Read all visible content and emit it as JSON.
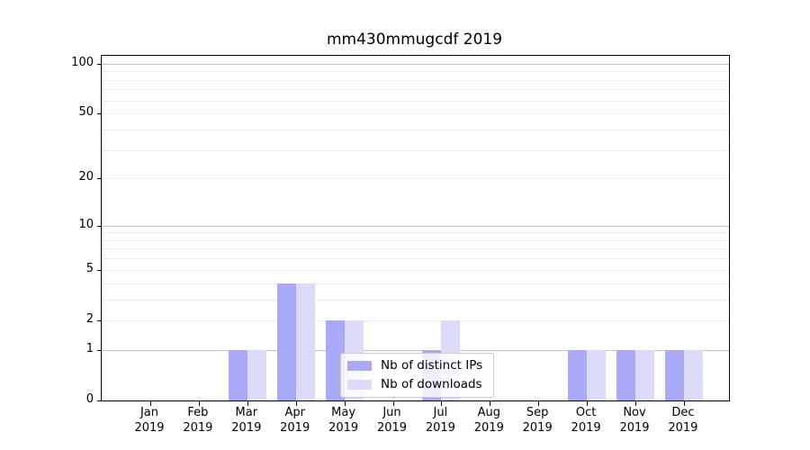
{
  "chart_data": {
    "type": "bar",
    "title": "mm430mmugcdf 2019",
    "categories": [
      "Jan",
      "Feb",
      "Mar",
      "Apr",
      "May",
      "Jun",
      "Jul",
      "Aug",
      "Sep",
      "Oct",
      "Nov",
      "Dec"
    ],
    "year": "2019",
    "series": [
      {
        "name": "Nb of distinct IPs",
        "color": "#a9a9f7",
        "values": [
          0,
          0,
          1,
          4,
          2,
          0,
          1,
          0,
          0,
          1,
          1,
          1
        ]
      },
      {
        "name": "Nb of downloads",
        "color": "#dcdcfa",
        "values": [
          0,
          0,
          1,
          4,
          2,
          0,
          2,
          0,
          0,
          1,
          1,
          1
        ]
      }
    ],
    "yscale": "log1p",
    "ylim": [
      0,
      110
    ],
    "y_ticks": [
      0,
      1,
      2,
      5,
      10,
      20,
      50,
      100
    ],
    "y_major_gridlines": [
      1,
      10,
      100
    ],
    "y_minor_gridlines": [
      2,
      3,
      4,
      5,
      6,
      7,
      8,
      9,
      20,
      30,
      40,
      50,
      60,
      70,
      80,
      90
    ],
    "grid": true,
    "legend_position": "lower center"
  },
  "colors": {
    "major_grid": "#c2c2c2",
    "minor_grid": "#ededed",
    "spine": "#000000",
    "legend_border": "#cccccc"
  }
}
